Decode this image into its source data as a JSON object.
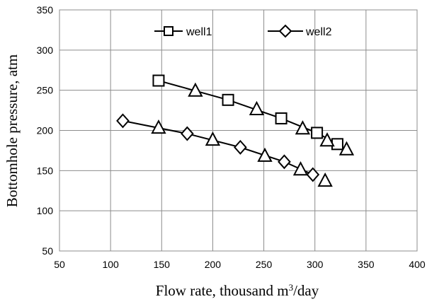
{
  "chart_data": {
    "type": "line",
    "title": "",
    "xlabel": "Flow rate, thousand m",
    "xlabel_sup": "3",
    "xlabel_suffix": "/day",
    "ylabel": "Bottomhole pressure, atm",
    "xlim": [
      50,
      400
    ],
    "ylim": [
      50,
      350
    ],
    "xticks": [
      50,
      100,
      150,
      200,
      250,
      300,
      350,
      400
    ],
    "yticks": [
      50,
      100,
      150,
      200,
      250,
      300,
      350
    ],
    "grid": true,
    "legend_position": "top",
    "series": [
      {
        "name": "well1",
        "marker": "square",
        "line": [
          [
            147,
            262
          ],
          [
            215,
            238
          ],
          [
            267,
            215
          ],
          [
            302,
            197
          ],
          [
            322,
            183
          ]
        ],
        "points": [
          [
            147,
            262
          ],
          [
            215,
            238
          ],
          [
            267,
            215
          ],
          [
            302,
            197
          ],
          [
            322,
            183
          ]
        ]
      },
      {
        "name": "well2",
        "marker": "diamond",
        "line": [
          [
            112,
            212
          ],
          [
            175,
            196
          ],
          [
            227,
            179
          ],
          [
            270,
            161
          ],
          [
            298,
            145
          ]
        ],
        "points": [
          [
            112,
            212
          ],
          [
            175,
            196
          ],
          [
            227,
            179
          ],
          [
            270,
            161
          ],
          [
            298,
            145
          ]
        ]
      },
      {
        "name": "",
        "marker": "triangle",
        "line": [],
        "points": [
          [
            147,
            203
          ],
          [
            183,
            249
          ],
          [
            200,
            188
          ],
          [
            243,
            226
          ],
          [
            251,
            168
          ],
          [
            288,
            202
          ],
          [
            286,
            151
          ],
          [
            312,
            187
          ],
          [
            310,
            137
          ],
          [
            331,
            176
          ]
        ]
      }
    ]
  }
}
